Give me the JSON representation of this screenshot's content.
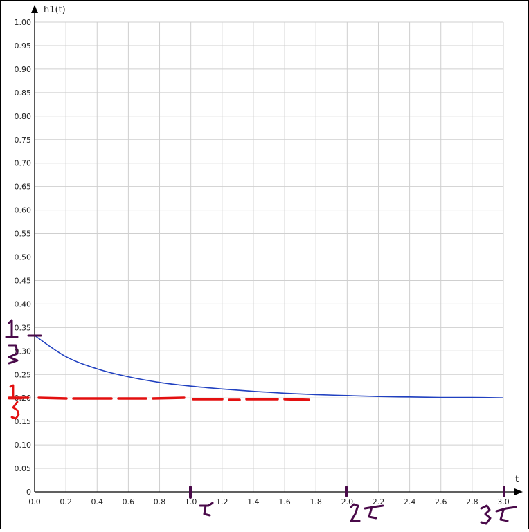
{
  "chart_data": {
    "type": "line",
    "ylabel": "h1(t)",
    "xlabel": "t",
    "xlim": [
      0,
      3.0
    ],
    "ylim": [
      0,
      1.0
    ],
    "grid": true,
    "x_ticks": [
      "0.0",
      "0.2",
      "0.4",
      "0.6",
      "0.8",
      "1.0",
      "1.2",
      "1.4",
      "1.6",
      "1.8",
      "2.0",
      "2.2",
      "2.4",
      "2.6",
      "2.8",
      "3.0"
    ],
    "y_ticks": [
      "0",
      "0.05",
      "0.10",
      "0.15",
      "0.20",
      "0.25",
      "0.30",
      "0.35",
      "0.40",
      "0.45",
      "0.50",
      "0.55",
      "0.60",
      "0.65",
      "0.70",
      "0.75",
      "0.80",
      "0.85",
      "0.90",
      "0.95",
      "1.00"
    ],
    "series": [
      {
        "color": "#2040c0",
        "x": [
          0.0,
          0.2,
          0.4,
          0.6,
          0.8,
          1.0,
          1.2,
          1.4,
          1.6,
          1.8,
          2.0,
          2.2,
          2.4,
          2.6,
          2.8,
          3.0
        ],
        "y": [
          0.333,
          0.288,
          0.262,
          0.245,
          0.233,
          0.225,
          0.219,
          0.214,
          0.21,
          0.207,
          0.205,
          0.203,
          0.202,
          0.201,
          0.201,
          0.2
        ]
      }
    ],
    "annotations": {
      "dashed_line": {
        "color": "#e31010",
        "y": 0.2,
        "x_start": 0.0,
        "x_end": 1.75
      },
      "markup_color": "#4a0a4a",
      "tick_marks_x": [
        1.0,
        2.0,
        3.0
      ],
      "tick_mark_y": 0.333
    }
  }
}
